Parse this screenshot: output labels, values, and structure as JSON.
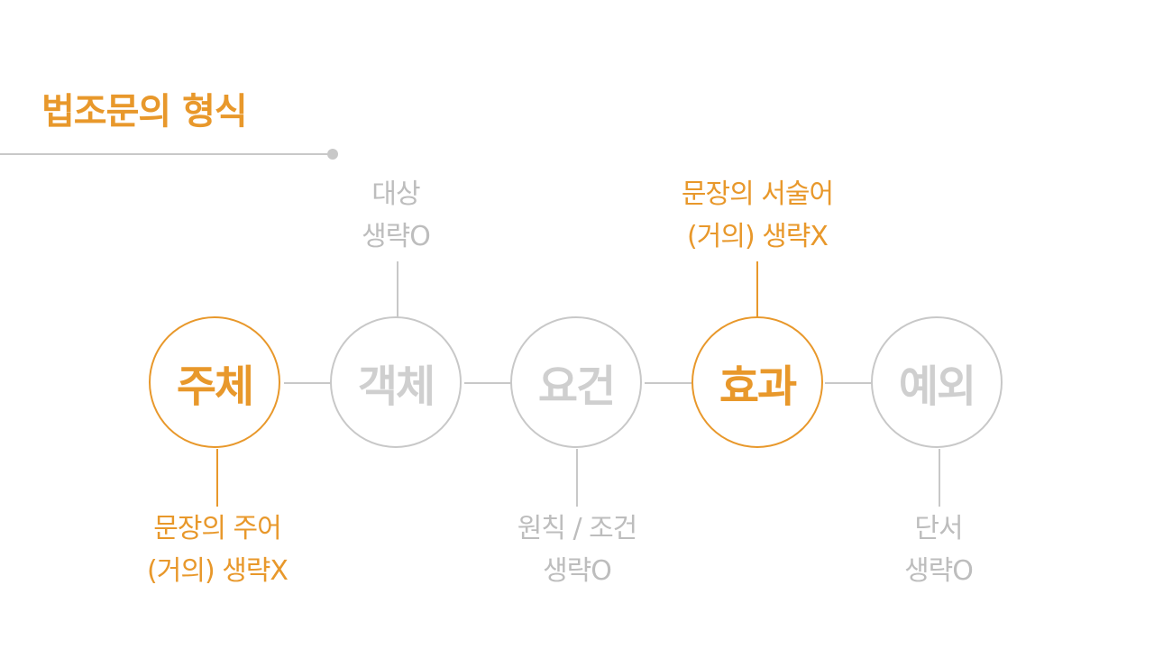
{
  "title": "법조문의 형식",
  "colors": {
    "accent": "#E8982B",
    "muted": "#C8C8C8",
    "muted_text": "#BDBDBD"
  },
  "nodes": [
    {
      "label": "주체",
      "highlighted": true,
      "caption_position": "below",
      "caption_lines": [
        "문장의 주어",
        "(거의) 생략X"
      ]
    },
    {
      "label": "객체",
      "highlighted": false,
      "caption_position": "above",
      "caption_lines": [
        "대상",
        "생략O"
      ]
    },
    {
      "label": "요건",
      "highlighted": false,
      "caption_position": "below",
      "caption_lines": [
        "원칙 / 조건",
        "생략O"
      ]
    },
    {
      "label": "효과",
      "highlighted": true,
      "caption_position": "above",
      "caption_lines": [
        "문장의 서술어",
        "(거의) 생략X"
      ]
    },
    {
      "label": "예외",
      "highlighted": false,
      "caption_position": "below",
      "caption_lines": [
        "단서",
        "생략O"
      ]
    }
  ]
}
